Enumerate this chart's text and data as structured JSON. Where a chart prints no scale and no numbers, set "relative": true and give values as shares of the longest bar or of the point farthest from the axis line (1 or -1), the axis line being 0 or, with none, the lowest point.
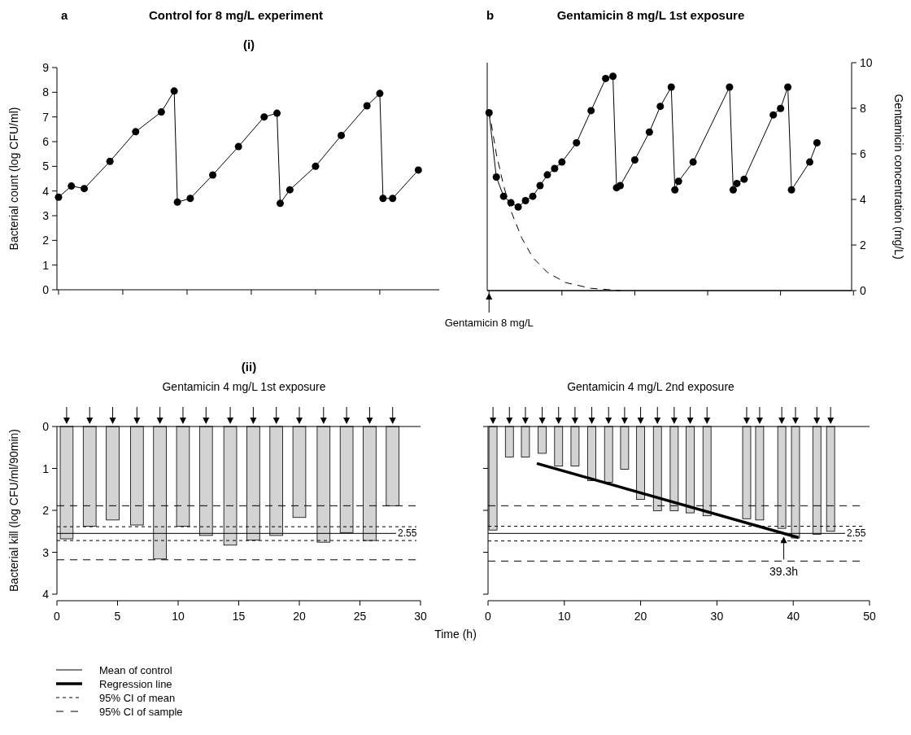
{
  "chart_data": [
    {
      "type": "line",
      "title": "Control for 8 mg/L experiment",
      "ylabel": "Bacterial count (log CFU/ml)",
      "annotations": [
        "a",
        "(i)"
      ],
      "marker": "circle",
      "color": "#000000",
      "categories": [
        null,
        null,
        null,
        null,
        null,
        null,
        null,
        null,
        null,
        null,
        null,
        null,
        null,
        null,
        null,
        null,
        null,
        null,
        null,
        null,
        null,
        null,
        null,
        null,
        null,
        null,
        null,
        null,
        null,
        null,
        null,
        null,
        null,
        null,
        null,
        null,
        null,
        null,
        null,
        null,
        null,
        null,
        null,
        null,
        null,
        null,
        null,
        null,
        null,
        null,
        null,
        null,
        null,
        null,
        null,
        null,
        null,
        null,
        null,
        null,
        null,
        null,
        null,
        null,
        null,
        null,
        null,
        null,
        null,
        null,
        null,
        null,
        null,
        null,
        null,
        null,
        null,
        null,
        null,
        null,
        null,
        null,
        null,
        null,
        null,
        null,
        null,
        null,
        null,
        null,
        null,
        null,
        null,
        null,
        null,
        null,
        null,
        null,
        null,
        null,
        null,
        null,
        null,
        null,
        null,
        null,
        null,
        null,
        null,
        null,
        null,
        null,
        null,
        null,
        null,
        null,
        null,
        null,
        null
      ],
      "values": [
        3.75,
        null,
        null,
        null,
        4.2,
        null,
        null,
        null,
        4.1,
        null,
        null,
        null,
        null,
        null,
        null,
        null,
        5.2,
        null,
        null,
        null,
        null,
        null,
        null,
        null,
        6.4,
        null,
        null,
        null,
        null,
        null,
        null,
        null,
        7.2,
        null,
        null,
        null,
        8.05,
        3.55,
        null,
        null,
        null,
        3.7,
        null,
        null,
        null,
        null,
        null,
        null,
        4.65,
        null,
        null,
        null,
        null,
        null,
        null,
        null,
        5.8,
        null,
        null,
        null,
        null,
        null,
        null,
        null,
        7.0,
        null,
        null,
        null,
        7.15,
        3.5,
        null,
        null,
        4.05,
        null,
        null,
        null,
        null,
        null,
        null,
        null,
        5.0,
        null,
        null,
        null,
        null,
        null,
        null,
        null,
        6.25,
        null,
        null,
        null,
        null,
        null,
        null,
        null,
        7.45,
        null,
        null,
        null,
        7.95,
        3.7,
        null,
        null,
        3.7,
        null,
        null,
        null,
        null,
        null,
        null,
        null,
        4.85,
        null,
        null,
        null,
        null,
        null,
        null
      ],
      "ylim": [
        0,
        9
      ],
      "yticks": [
        0,
        1,
        2,
        3,
        4,
        5,
        6,
        7,
        8,
        9
      ]
    },
    {
      "type": "line",
      "title": "Gentamicin 8 mg/L 1st exposure",
      "annotations": [
        "b",
        "Gentamicin 8 mg/L"
      ],
      "marker": "circle",
      "relative": true,
      "color": "#000000",
      "categories": [
        null,
        null,
        null,
        null,
        null,
        null,
        null,
        null,
        null,
        null,
        null,
        null,
        null,
        null,
        null,
        null,
        null,
        null,
        null,
        null,
        null,
        null,
        null,
        null,
        null,
        null,
        null,
        null,
        null,
        null,
        null,
        null,
        null,
        null,
        null,
        null,
        null,
        null,
        null,
        null,
        null,
        null,
        null,
        null,
        null,
        null,
        null,
        null,
        null,
        null,
        null,
        null,
        null,
        null,
        null,
        null,
        null,
        null,
        null,
        null,
        null,
        null,
        null,
        null,
        null,
        null,
        null,
        null,
        null,
        null,
        null,
        null,
        null,
        null,
        null,
        null,
        null,
        null,
        null,
        null,
        null,
        null,
        null,
        null,
        null,
        null,
        null,
        null,
        null,
        null,
        null,
        null,
        null,
        null,
        null,
        null,
        null,
        null,
        null,
        null
      ],
      "values": [
        0.83,
        null,
        0.53,
        null,
        0.44,
        null,
        0.41,
        null,
        0.39,
        null,
        0.42,
        null,
        0.44,
        null,
        0.49,
        null,
        0.54,
        null,
        0.57,
        null,
        0.6,
        null,
        null,
        null,
        0.69,
        null,
        null,
        null,
        0.84,
        null,
        null,
        null,
        0.99,
        null,
        1,
        0.48,
        0.49,
        null,
        null,
        null,
        0.61,
        null,
        null,
        null,
        0.74,
        null,
        null,
        0.86,
        null,
        null,
        0.95,
        0.47,
        0.51,
        null,
        null,
        null,
        0.6,
        null,
        null,
        null,
        null,
        null,
        null,
        null,
        null,
        null,
        0.95,
        0.47,
        0.5,
        null,
        0.52,
        null,
        null,
        null,
        null,
        null,
        null,
        null,
        0.82,
        null,
        0.85,
        null,
        0.95,
        0.47,
        null,
        null,
        null,
        null,
        0.6,
        null,
        0.69,
        null,
        null,
        null,
        null,
        null,
        null,
        null,
        null,
        null
      ]
    },
    {
      "type": "line",
      "marker": "none",
      "line_style": "dashed",
      "ylabel": "Gentamicin concentration (mg/L)",
      "color": "#000000",
      "categories": [
        null,
        null,
        null,
        null,
        null,
        null,
        null,
        null,
        null,
        null,
        null,
        null,
        null,
        null,
        null,
        null,
        null,
        null,
        null,
        null,
        null,
        null,
        null,
        null,
        null,
        null,
        null,
        null,
        null,
        null,
        null,
        null,
        null,
        null,
        null,
        null,
        null,
        null,
        null,
        null,
        null,
        null,
        null,
        null,
        null,
        null,
        null,
        null,
        null,
        null,
        null,
        null,
        null,
        null,
        null,
        null,
        null,
        null,
        null,
        null,
        null,
        null,
        null,
        null,
        null,
        null,
        null,
        null,
        null,
        null,
        null,
        null,
        null,
        null,
        null,
        null,
        null,
        null,
        null,
        null,
        null,
        null,
        null,
        null,
        null,
        null,
        null,
        null,
        null,
        null,
        null,
        null,
        null,
        null,
        null,
        null,
        null,
        null,
        null,
        null
      ],
      "values": [
        7.9,
        null,
        6.0,
        null,
        4.6,
        null,
        3.5,
        null,
        null,
        2.3,
        null,
        null,
        1.45,
        null,
        null,
        null,
        0.8,
        null,
        null,
        null,
        null,
        0.35,
        null,
        null,
        null,
        null,
        null,
        null,
        0.1,
        null,
        null,
        null,
        null,
        null,
        null,
        null,
        0,
        null,
        null,
        null,
        null,
        null,
        null,
        null,
        null,
        null,
        null,
        null,
        null,
        null,
        null,
        null,
        null,
        null,
        null,
        null,
        null,
        null,
        null,
        null,
        null,
        null,
        null,
        null,
        null,
        null,
        null,
        null,
        null,
        null,
        null,
        null,
        null,
        null,
        null,
        null,
        null,
        null,
        null,
        null,
        null,
        null,
        null,
        null,
        null,
        null,
        null,
        null,
        null,
        null,
        null,
        null,
        null,
        null,
        null,
        null,
        null,
        null,
        null,
        null
      ],
      "ylim": [
        0,
        10
      ],
      "yticks": [
        0,
        2,
        4,
        6,
        8,
        10
      ]
    },
    {
      "type": "bar",
      "title": "Gentamicin 4 mg/L 1st exposure",
      "ylabel": "Bacterial kill (log CFU/ml/90min)",
      "xlabel": "Time (h)",
      "annotations": [
        "(ii)"
      ],
      "color": "#d3d3d3",
      "x": [
        0.8,
        2.7,
        4.6,
        6.6,
        8.5,
        10.4,
        12.3,
        14.3,
        16.2,
        18.1,
        20.0,
        22.0,
        23.9,
        25.8,
        27.7
      ],
      "values": [
        2.68,
        2.38,
        2.23,
        2.35,
        3.16,
        2.38,
        2.6,
        2.83,
        2.71,
        2.6,
        2.17,
        2.76,
        2.53,
        2.72,
        1.89
      ],
      "xlim": [
        0,
        30
      ],
      "xticks": [
        0,
        5,
        10,
        15,
        20,
        25,
        30
      ],
      "ylim": [
        4,
        0
      ],
      "yticks": [
        0,
        1,
        2,
        3,
        4
      ],
      "ref_lines": [
        {
          "axis": "y",
          "value": 2.55,
          "label": "2.55",
          "line_style": "solid"
        },
        {
          "axis": "y",
          "value": 2.39,
          "line_style": "dotted"
        },
        {
          "axis": "y",
          "value": 2.72,
          "line_style": "dotted"
        },
        {
          "axis": "y",
          "value": 1.89,
          "line_style": "dashed"
        },
        {
          "axis": "y",
          "value": 3.18,
          "line_style": "dashed"
        }
      ]
    },
    {
      "type": "bar",
      "title": "Gentamicin 4 mg/L 2nd exposure",
      "annotations": [
        "39.3h",
        "Mean of control",
        "95% CI of mean",
        "95% CI of sample"
      ],
      "legend": "bottom",
      "tick_labels": "x",
      "series": [
        {
          "type": "bar",
          "color": "#d3d3d3",
          "x": [
            0.65,
            2.8,
            4.9,
            7.1,
            9.25,
            11.4,
            13.6,
            15.8,
            17.9,
            20.0,
            22.2,
            24.4,
            26.5,
            28.7,
            33.9,
            35.6,
            38.5,
            40.3,
            43.1,
            44.9
          ],
          "values": [
            2.47,
            0.73,
            0.73,
            0.64,
            0.94,
            0.94,
            1.29,
            1.33,
            1.02,
            1.74,
            2.01,
            2.01,
            2.06,
            2.13,
            2.2,
            2.23,
            2.43,
            2.66,
            2.57,
            2.5
          ]
        },
        {
          "type": "line",
          "name": "Regression line",
          "color": "#000000",
          "x": [
            6.4,
            40.7
          ],
          "values": [
            0.88,
            2.65
          ]
        }
      ],
      "xlim": [
        0,
        50
      ],
      "xticks": [
        0,
        10,
        20,
        30,
        40,
        50
      ],
      "ylim": [
        4,
        0
      ],
      "yticks": [
        0,
        1,
        2,
        3,
        4
      ],
      "ref_lines": [
        {
          "axis": "y",
          "value": 2.55,
          "label": "2.55",
          "line_style": "solid"
        },
        {
          "axis": "y",
          "value": 2.38,
          "line_style": "dotted"
        },
        {
          "axis": "y",
          "value": 2.73,
          "line_style": "dotted"
        },
        {
          "axis": "y",
          "value": 1.89,
          "line_style": "dashed"
        },
        {
          "axis": "y",
          "value": 3.21,
          "line_style": "dashed"
        }
      ]
    }
  ]
}
